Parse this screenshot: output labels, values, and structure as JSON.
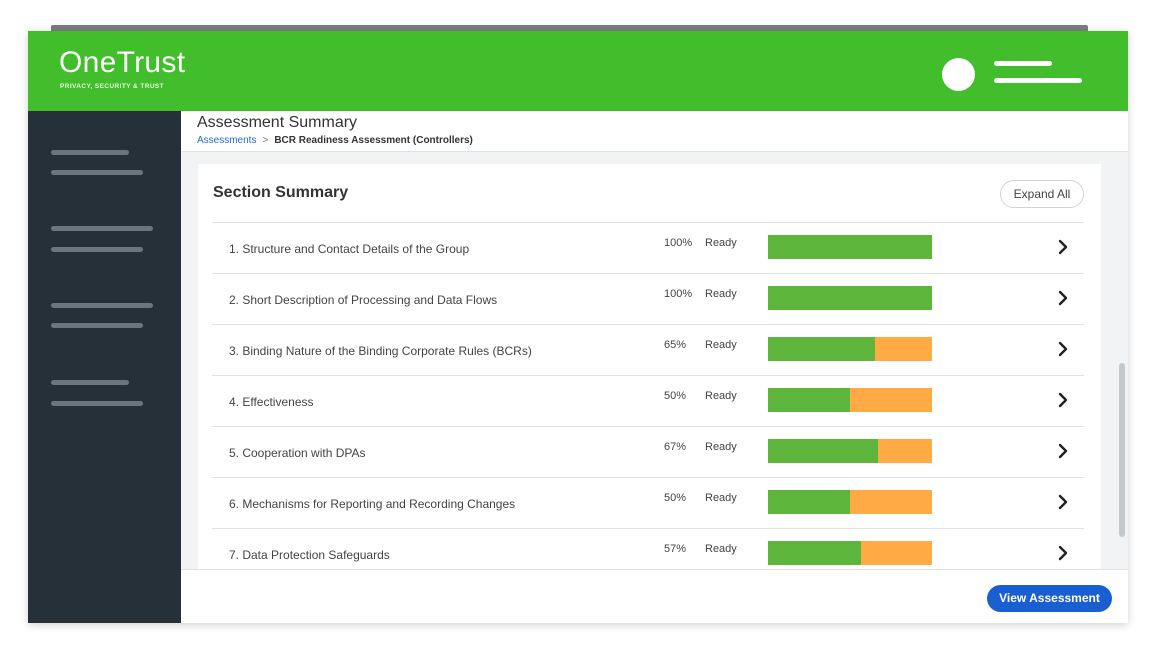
{
  "app": {
    "logo": "OneTrust",
    "tagline": "PRIVACY, SECURITY & TRUST"
  },
  "page": {
    "title": "Assessment Summary",
    "breadcrumb": {
      "link": "Assessments",
      "separator": ">",
      "current": "BCR Readiness Assessment (Controllers)"
    }
  },
  "card": {
    "title": "Section Summary",
    "expand_all_label": "Expand All"
  },
  "colors": {
    "brand": "#42bd2c",
    "sidebar": "#263038",
    "bar_ready": "#5db53c",
    "bar_remaining": "#ffaa44",
    "primary_button": "#1a5fd1"
  },
  "sections": [
    {
      "label": "1. Structure and Contact Details of the Group",
      "percent_label": "100%",
      "percent": 100,
      "status": "Ready"
    },
    {
      "label": "2. Short Description of Processing and Data Flows",
      "percent_label": "100%",
      "percent": 100,
      "status": "Ready"
    },
    {
      "label": "3. Binding Nature of the Binding Corporate Rules (BCRs)",
      "percent_label": "65%",
      "percent": 65,
      "status": "Ready"
    },
    {
      "label": "4. Effectiveness",
      "percent_label": "50%",
      "percent": 50,
      "status": "Ready"
    },
    {
      "label": "5. Cooperation with DPAs",
      "percent_label": "67%",
      "percent": 67,
      "status": "Ready"
    },
    {
      "label": "6. Mechanisms for Reporting and Recording Changes",
      "percent_label": "50%",
      "percent": 50,
      "status": "Ready"
    },
    {
      "label": "7. Data Protection Safeguards",
      "percent_label": "57%",
      "percent": 57,
      "status": "Ready"
    }
  ],
  "footer": {
    "view_assessment_label": "View Assessment"
  },
  "icons": {
    "row_action": "chevron-right-icon",
    "menu": "hamburger-menu-icon",
    "user": "avatar"
  }
}
